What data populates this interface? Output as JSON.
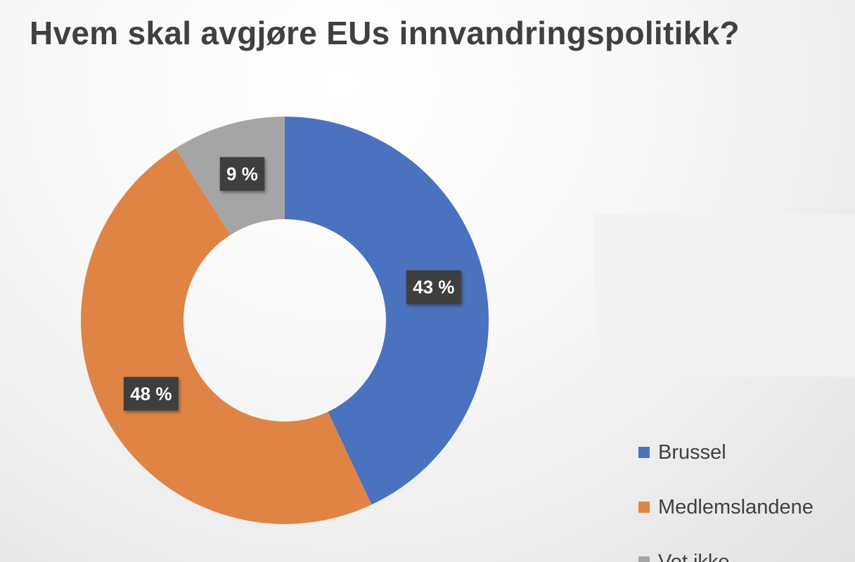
{
  "chart_data": {
    "type": "pie",
    "variant": "donut",
    "title": "Hvem skal avgjøre EUs innvandringspolitikk?",
    "series": [
      {
        "categories": [
          "Brussel",
          "Medlemslandene",
          "Vet ikke"
        ],
        "values": [
          43,
          48,
          9
        ],
        "labels": [
          "43 %",
          "48 %",
          "9 %"
        ],
        "colors": [
          "#4b72be",
          "#e08445",
          "#a5a5a5"
        ]
      }
    ],
    "legend": {
      "position": "right",
      "entries": [
        "Brussel",
        "Medlemslandene",
        "Vet ikke"
      ]
    },
    "data_label_style": {
      "background": "#3b3b3b",
      "text_color": "#ffffff"
    }
  }
}
